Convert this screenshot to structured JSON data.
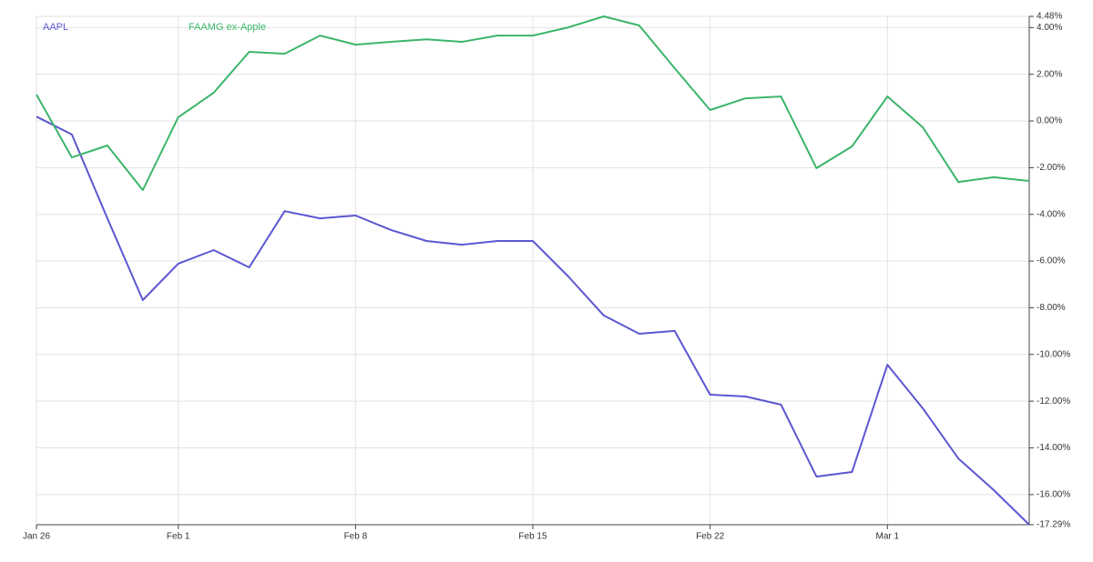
{
  "chart_data": {
    "type": "line",
    "categories": [
      "Jan 26",
      null,
      null,
      null,
      "Feb 1",
      null,
      null,
      null,
      null,
      "Feb 8",
      null,
      null,
      null,
      null,
      "Feb 15",
      null,
      null,
      null,
      null,
      "Feb 22",
      null,
      null,
      null,
      null,
      "Mar 1",
      null,
      null,
      null,
      null
    ],
    "series": [
      {
        "name": "AAPL",
        "color": "#5b57d1",
        "values": [
          0.19,
          -0.58,
          -4.17,
          -7.67,
          -6.11,
          -5.53,
          -6.27,
          -3.86,
          -4.17,
          -4.05,
          -4.67,
          -5.14,
          -5.3,
          -5.14,
          -5.14,
          -6.66,
          -8.33,
          -9.11,
          -8.99,
          -11.72,
          -11.8,
          -12.15,
          -15.23,
          -15.03,
          -10.44,
          -12.31,
          -14.45,
          -15.81,
          -17.29
        ]
      },
      {
        "name": "FAAMG ex-Apple",
        "color": "#3cb56a",
        "values": [
          1.13,
          -1.56,
          -1.05,
          -2.96,
          0.16,
          1.21,
          2.96,
          2.88,
          3.66,
          3.27,
          3.39,
          3.5,
          3.39,
          3.66,
          3.66,
          4.01,
          4.48,
          4.09,
          2.26,
          0.47,
          0.97,
          1.05,
          -2.02,
          -1.09,
          1.05,
          -0.27,
          -2.61,
          -2.41,
          -2.57
        ]
      }
    ],
    "ylim": [
      -17.29,
      4.48
    ],
    "yticks": [
      {
        "value": -17.29,
        "label": "-17.29%"
      },
      {
        "value": -16,
        "label": "-16.00%"
      },
      {
        "value": -14,
        "label": "-14.00%"
      },
      {
        "value": -12,
        "label": "-12.00%"
      },
      {
        "value": -10,
        "label": "-10.00%"
      },
      {
        "value": -8,
        "label": "-8.00%"
      },
      {
        "value": -6,
        "label": "-6.00%"
      },
      {
        "value": -4,
        "label": "-4.00%"
      },
      {
        "value": -2,
        "label": "-2.00%"
      },
      {
        "value": 0,
        "label": "0.00%"
      },
      {
        "value": 2,
        "label": "2.00%"
      },
      {
        "value": 4,
        "label": "4.00%"
      },
      {
        "value": 4.48,
        "label": "4.48%"
      }
    ],
    "grid": true
  }
}
